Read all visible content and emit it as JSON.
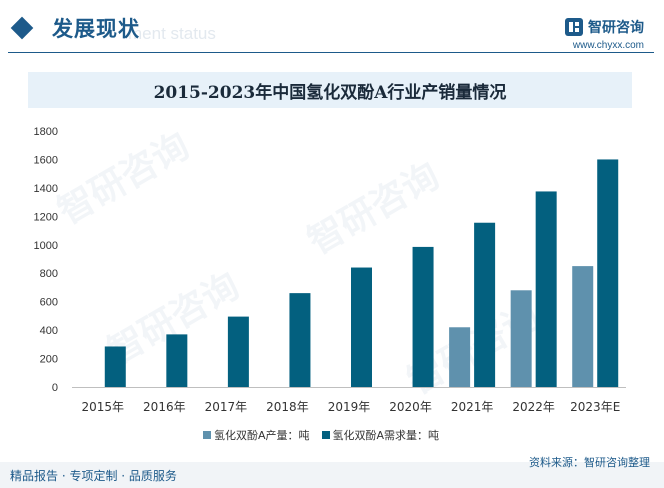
{
  "header": {
    "title": "发展现状",
    "subtitle_watermark": "ment status"
  },
  "brand": {
    "name": "智研咨询",
    "url": "www.chyxx.com"
  },
  "chart_data": {
    "type": "bar",
    "title": "2015-2023年中国氢化双酚A行业产销量情况",
    "categories": [
      "2015年",
      "2016年",
      "2017年",
      "2018年",
      "2019年",
      "2020年",
      "2021年",
      "2022年",
      "2023年E"
    ],
    "series": [
      {
        "name": "氢化双酚A产量：吨",
        "color": "#5f91ad",
        "values": [
          null,
          null,
          null,
          null,
          null,
          null,
          420,
          680,
          850
        ]
      },
      {
        "name": "氢化双酚A需求量：吨",
        "color": "#03607f",
        "values": [
          285,
          370,
          495,
          660,
          840,
          985,
          1155,
          1375,
          1600
        ]
      }
    ],
    "y_ticks": [
      0,
      200,
      400,
      600,
      800,
      1000,
      1200,
      1400,
      1600,
      1800
    ],
    "ylim": [
      0,
      1800
    ],
    "grid": false,
    "legend_position": "bottom"
  },
  "footer": {
    "tagline": "精品报告 · 专项定制 · 品质服务",
    "source": "资料来源：智研咨询整理"
  },
  "watermark_text": "智研咨询"
}
